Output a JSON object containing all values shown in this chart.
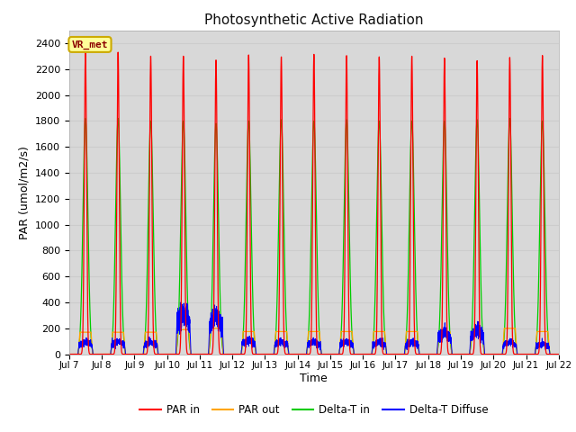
{
  "title": "Photosynthetic Active Radiation",
  "xlabel": "Time",
  "ylabel": "PAR (umol/m2/s)",
  "xlim_days": [
    7,
    22
  ],
  "ylim": [
    0,
    2500
  ],
  "yticks": [
    0,
    200,
    400,
    600,
    800,
    1000,
    1200,
    1400,
    1600,
    1800,
    2000,
    2200,
    2400
  ],
  "xtick_labels": [
    "Jul 7",
    "Jul 8",
    "Jul 9",
    "Jul 10",
    "Jul 11",
    "Jul 12",
    "Jul 13",
    "Jul 14",
    "Jul 15",
    "Jul 16",
    "Jul 17",
    "Jul 18",
    "Jul 19",
    "Jul 20",
    "Jul 21",
    "Jul 22"
  ],
  "xtick_positions": [
    7,
    8,
    9,
    10,
    11,
    12,
    13,
    14,
    15,
    16,
    17,
    18,
    19,
    20,
    21,
    22
  ],
  "colors": {
    "PAR_in": "#ff0000",
    "PAR_out": "#ffa500",
    "Delta_T_in": "#00cc00",
    "Delta_T_Diffuse": "#0000ff"
  },
  "background_color": "#d8d8d8",
  "figure_bg": "#ffffff",
  "annotation_text": "VR_met",
  "annotation_bg": "#ffff99",
  "annotation_border": "#ccaa00",
  "PAR_in_peaks": [
    2330,
    2330,
    2300,
    2300,
    2270,
    2310,
    2295,
    2315,
    2305,
    2295,
    2300,
    2285,
    2265,
    2290,
    2305
  ],
  "PAR_out_peaks": [
    170,
    170,
    170,
    190,
    200,
    175,
    175,
    175,
    175,
    175,
    175,
    175,
    175,
    200,
    175
  ],
  "Delta_T_in_peaks": [
    1820,
    1820,
    1800,
    1800,
    1780,
    1800,
    1810,
    1800,
    1810,
    1800,
    1800,
    1800,
    1810,
    1820,
    1800
  ],
  "Delta_T_Diffuse_peaks": [
    90,
    90,
    90,
    300,
    270,
    100,
    90,
    90,
    90,
    90,
    90,
    160,
    170,
    90,
    75
  ],
  "num_days": 15,
  "start_day": 7,
  "points_per_day": 500
}
